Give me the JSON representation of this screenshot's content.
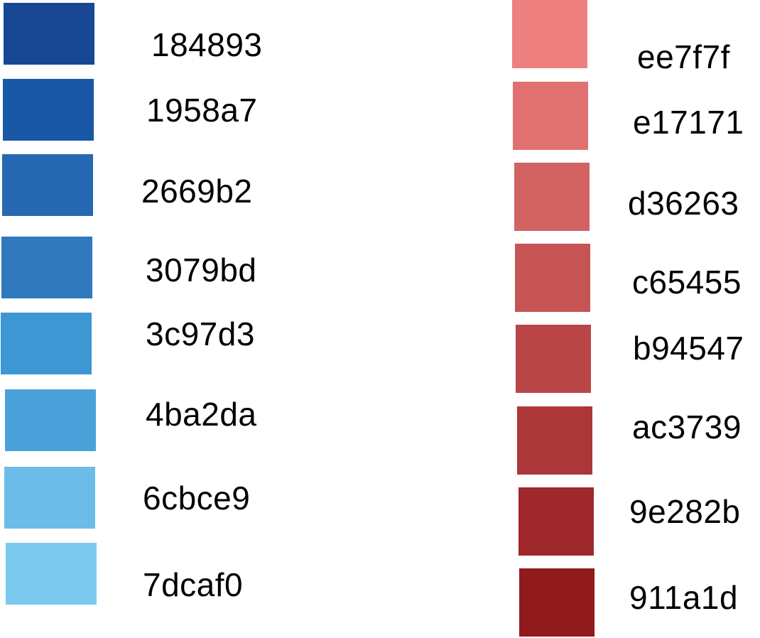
{
  "blue_palette": [
    {
      "hex": "184893",
      "color": "#184893"
    },
    {
      "hex": "1958a7",
      "color": "#1958a7"
    },
    {
      "hex": "2669b2",
      "color": "#2669b2"
    },
    {
      "hex": "3079bd",
      "color": "#3079bd"
    },
    {
      "hex": "3c97d3",
      "color": "#3c97d3"
    },
    {
      "hex": "4ba2da",
      "color": "#4ba2da"
    },
    {
      "hex": "6cbce9",
      "color": "#6cbce9"
    },
    {
      "hex": "7dcaf0",
      "color": "#7dcaf0"
    }
  ],
  "red_palette": [
    {
      "hex": "ee7f7f",
      "color": "#ee7f7f"
    },
    {
      "hex": "e17171",
      "color": "#e17171"
    },
    {
      "hex": "d36263",
      "color": "#d36263"
    },
    {
      "hex": "c65455",
      "color": "#c65455"
    },
    {
      "hex": "b94547",
      "color": "#b94547"
    },
    {
      "hex": "ac3739",
      "color": "#ac3739"
    },
    {
      "hex": "9e282b",
      "color": "#9e282b"
    },
    {
      "hex": "911a1d",
      "color": "#911a1d"
    }
  ]
}
